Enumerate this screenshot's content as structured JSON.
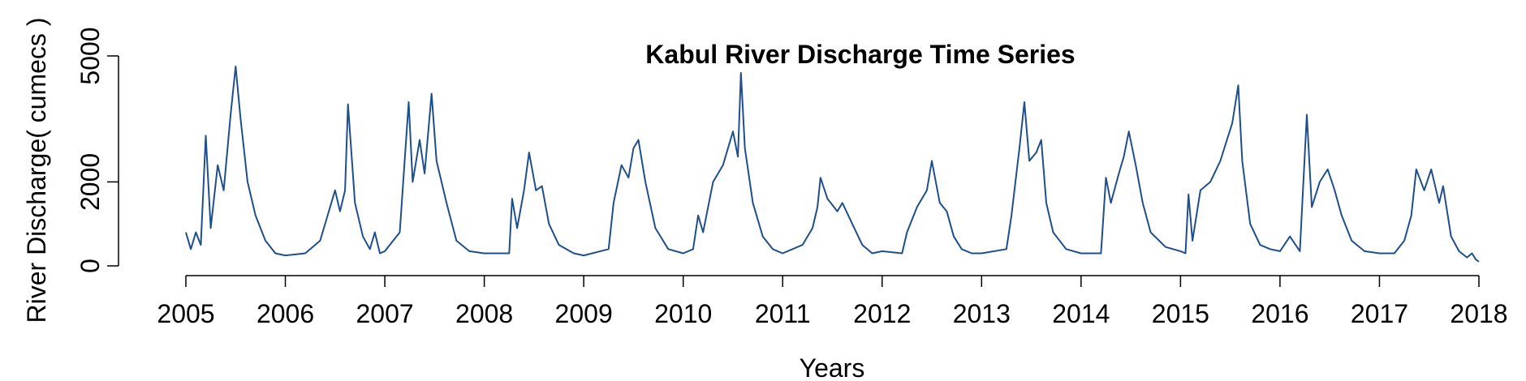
{
  "chart_data": {
    "type": "line",
    "title": "Kabul River Discharge Time Series",
    "x_label": "Years",
    "y_label": "River Discharge( cumecs )",
    "color": "#1f4e8c",
    "x": [
      2005.0,
      2005.05,
      2005.1,
      2005.15,
      2005.2,
      2005.25,
      2005.32,
      2005.38,
      2005.45,
      2005.5,
      2005.55,
      2005.62,
      2005.7,
      2005.8,
      2005.9,
      2006.0,
      2006.2,
      2006.35,
      2006.5,
      2006.55,
      2006.6,
      2006.63,
      2006.7,
      2006.78,
      2006.85,
      2006.9,
      2006.95,
      2007.0,
      2007.15,
      2007.24,
      2007.28,
      2007.35,
      2007.4,
      2007.47,
      2007.52,
      2007.62,
      2007.72,
      2007.85,
      2008.0,
      2008.25,
      2008.28,
      2008.33,
      2008.4,
      2008.45,
      2008.52,
      2008.58,
      2008.65,
      2008.75,
      2008.9,
      2009.0,
      2009.25,
      2009.3,
      2009.38,
      2009.45,
      2009.5,
      2009.55,
      2009.62,
      2009.72,
      2009.85,
      2010.0,
      2010.1,
      2010.15,
      2010.2,
      2010.3,
      2010.4,
      2010.5,
      2010.55,
      2010.58,
      2010.62,
      2010.7,
      2010.8,
      2010.9,
      2011.0,
      2011.2,
      2011.3,
      2011.35,
      2011.38,
      2011.45,
      2011.55,
      2011.6,
      2011.7,
      2011.8,
      2011.9,
      2012.0,
      2012.2,
      2012.25,
      2012.35,
      2012.45,
      2012.5,
      2012.58,
      2012.65,
      2012.72,
      2012.8,
      2012.9,
      2013.0,
      2013.25,
      2013.3,
      2013.38,
      2013.43,
      2013.48,
      2013.55,
      2013.6,
      2013.65,
      2013.72,
      2013.85,
      2014.0,
      2014.2,
      2014.25,
      2014.3,
      2014.38,
      2014.43,
      2014.48,
      2014.55,
      2014.62,
      2014.7,
      2014.85,
      2015.0,
      2015.05,
      2015.08,
      2015.12,
      2015.2,
      2015.3,
      2015.4,
      2015.52,
      2015.58,
      2015.62,
      2015.7,
      2015.8,
      2015.9,
      2016.0,
      2016.1,
      2016.2,
      2016.27,
      2016.32,
      2016.4,
      2016.48,
      2016.55,
      2016.62,
      2016.72,
      2016.85,
      2017.0,
      2017.15,
      2017.25,
      2017.32,
      2017.37,
      2017.45,
      2017.52,
      2017.6,
      2017.64,
      2017.72,
      2017.8,
      2017.88,
      2017.93,
      2017.97,
      2018.0
    ],
    "values": [
      800,
      400,
      800,
      500,
      3100,
      900,
      2400,
      1800,
      3600,
      4750,
      3500,
      2000,
      1200,
      600,
      300,
      250,
      300,
      600,
      1800,
      1300,
      1800,
      3850,
      1500,
      700,
      400,
      800,
      300,
      350,
      800,
      3900,
      2000,
      3000,
      2200,
      4100,
      2500,
      1500,
      600,
      350,
      300,
      300,
      1600,
      900,
      1800,
      2700,
      1800,
      1900,
      1000,
      500,
      300,
      250,
      400,
      1500,
      2400,
      2100,
      2800,
      3000,
      2000,
      900,
      400,
      300,
      400,
      1200,
      800,
      2000,
      2400,
      3200,
      2600,
      4600,
      2800,
      1500,
      700,
      400,
      300,
      500,
      900,
      1400,
      2100,
      1600,
      1300,
      1500,
      1000,
      500,
      300,
      350,
      300,
      800,
      1400,
      1800,
      2500,
      1500,
      1300,
      700,
      400,
      300,
      300,
      400,
      1200,
      2800,
      3900,
      2500,
      2700,
      3000,
      1500,
      800,
      400,
      300,
      300,
      2100,
      1500,
      2200,
      2600,
      3200,
      2400,
      1500,
      800,
      450,
      350,
      300,
      1700,
      600,
      1800,
      2000,
      2500,
      3400,
      4300,
      2500,
      1000,
      500,
      400,
      350,
      700,
      350,
      3600,
      1400,
      2000,
      2300,
      1800,
      1200,
      600,
      350,
      300,
      300,
      600,
      1200,
      2300,
      1800,
      2300,
      1500,
      1900,
      700,
      350,
      200,
      300,
      150,
      100
    ],
    "xlim": [
      2005,
      2018
    ],
    "xticks": [
      2005,
      2006,
      2007,
      2008,
      2009,
      2010,
      2011,
      2012,
      2013,
      2014,
      2015,
      2016,
      2017,
      2018
    ],
    "ylim": [
      0,
      5000
    ],
    "yticks": [
      0,
      2000,
      5000
    ]
  }
}
